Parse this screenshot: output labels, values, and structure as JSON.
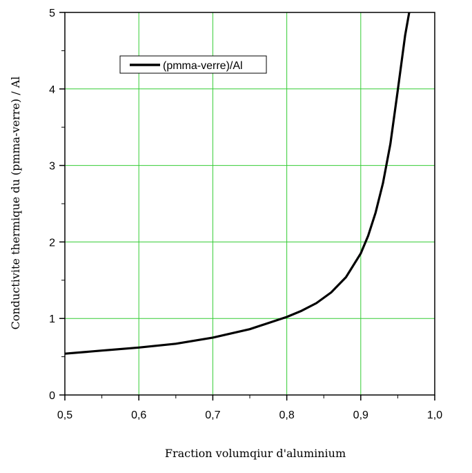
{
  "chart_data": {
    "type": "line",
    "title": "",
    "xlabel": "Fraction volumqiur d'aluminium",
    "ylabel": "Conductivite thermique du (pmma-verre) / Al",
    "xlim": [
      0.5,
      1.0
    ],
    "ylim": [
      0,
      5
    ],
    "x_ticks": [
      0.5,
      0.6,
      0.7,
      0.8,
      0.9,
      1.0
    ],
    "x_tick_labels": [
      "0,5",
      "0,6",
      "0,7",
      "0,8",
      "0,9",
      "1,0"
    ],
    "y_ticks": [
      0,
      1,
      2,
      3,
      4,
      5
    ],
    "y_tick_labels": [
      "0",
      "1",
      "2",
      "3",
      "4",
      "5"
    ],
    "grid": true,
    "grid_color": "#33cc33",
    "legend_position": "top-left",
    "series": [
      {
        "name": "(pmma-verre)/Al",
        "color": "#000000",
        "x": [
          0.5,
          0.55,
          0.6,
          0.65,
          0.7,
          0.75,
          0.8,
          0.82,
          0.84,
          0.86,
          0.88,
          0.9,
          0.91,
          0.92,
          0.93,
          0.94,
          0.95,
          0.96,
          0.9655
        ],
        "y": [
          0.54,
          0.58,
          0.62,
          0.67,
          0.75,
          0.86,
          1.02,
          1.1,
          1.2,
          1.34,
          1.54,
          1.85,
          2.08,
          2.38,
          2.77,
          3.28,
          3.98,
          4.7,
          5.0
        ]
      }
    ]
  }
}
